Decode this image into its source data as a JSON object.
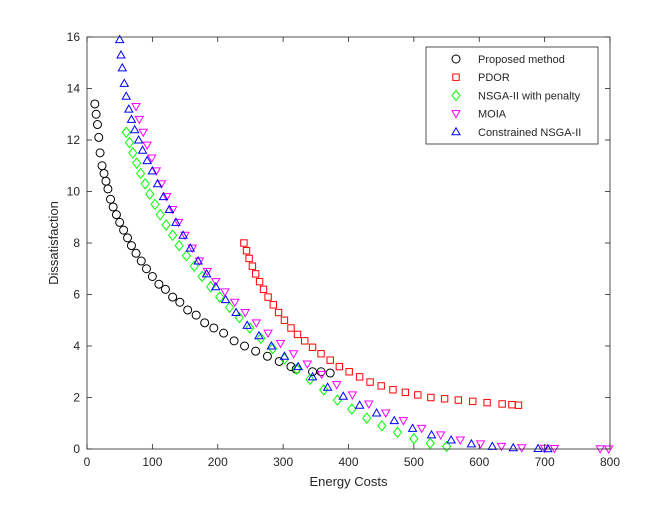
{
  "chart_data": {
    "type": "scatter",
    "title": "",
    "xlabel": "Energy Costs",
    "ylabel": "Dissatisfaction",
    "xlim": [
      0,
      800
    ],
    "ylim": [
      0,
      16
    ],
    "xticks": [
      0,
      100,
      200,
      300,
      400,
      500,
      600,
      700,
      800
    ],
    "yticks": [
      0,
      2,
      4,
      6,
      8,
      10,
      12,
      14,
      16
    ],
    "grid": false,
    "legend_position": "top-right",
    "series": [
      {
        "name": "Proposed method",
        "marker": "circle",
        "color": "#000000",
        "x": [
          12,
          14,
          16,
          18,
          20,
          23,
          26,
          29,
          32,
          36,
          40,
          45,
          50,
          56,
          62,
          68,
          75,
          83,
          91,
          100,
          110,
          120,
          131,
          142,
          154,
          167,
          180,
          194,
          209,
          225,
          241,
          258,
          276,
          294,
          312,
          320,
          345,
          358,
          372
        ],
        "y": [
          13.4,
          13.0,
          12.6,
          12.1,
          11.5,
          11.0,
          10.7,
          10.4,
          10.1,
          9.7,
          9.4,
          9.1,
          8.8,
          8.5,
          8.2,
          7.9,
          7.6,
          7.3,
          7.0,
          6.7,
          6.4,
          6.2,
          5.9,
          5.7,
          5.4,
          5.2,
          4.9,
          4.7,
          4.5,
          4.2,
          4.0,
          3.8,
          3.6,
          3.4,
          3.2,
          3.1,
          3.0,
          3.0,
          2.95
        ]
      },
      {
        "name": "PDOR",
        "marker": "square",
        "color": "#ff0000",
        "x": [
          240,
          244,
          248,
          253,
          258,
          264,
          270,
          277,
          285,
          293,
          302,
          312,
          322,
          333,
          345,
          358,
          372,
          386,
          401,
          417,
          433,
          450,
          468,
          487,
          506,
          526,
          547,
          568,
          590,
          612,
          635,
          650,
          660
        ],
        "y": [
          8.0,
          7.7,
          7.4,
          7.1,
          6.8,
          6.5,
          6.2,
          5.9,
          5.6,
          5.3,
          5.0,
          4.7,
          4.45,
          4.2,
          3.95,
          3.7,
          3.45,
          3.2,
          3.0,
          2.8,
          2.6,
          2.45,
          2.3,
          2.2,
          2.1,
          2.0,
          1.95,
          1.9,
          1.85,
          1.8,
          1.75,
          1.72,
          1.7
        ]
      },
      {
        "name": "NSGA-II with penalty",
        "marker": "diamond",
        "color": "#00ff00",
        "x": [
          60,
          65,
          70,
          76,
          82,
          89,
          96,
          104,
          112,
          121,
          131,
          141,
          152,
          164,
          176,
          189,
          203,
          218,
          233,
          249,
          266,
          284,
          302,
          321,
          341,
          362,
          383,
          405,
          428,
          451,
          475,
          500,
          525,
          550
        ],
        "y": [
          12.3,
          11.9,
          11.5,
          11.1,
          10.7,
          10.3,
          9.9,
          9.5,
          9.1,
          8.7,
          8.3,
          7.9,
          7.5,
          7.1,
          6.7,
          6.3,
          5.9,
          5.5,
          5.1,
          4.7,
          4.3,
          3.9,
          3.5,
          3.1,
          2.7,
          2.3,
          1.9,
          1.55,
          1.2,
          0.9,
          0.65,
          0.4,
          0.22,
          0.1
        ]
      },
      {
        "name": "MOIA",
        "marker": "triangle-down",
        "color": "#ff00ff",
        "x": [
          75,
          80,
          86,
          92,
          99,
          106,
          114,
          122,
          131,
          140,
          150,
          161,
          172,
          184,
          197,
          211,
          226,
          242,
          259,
          277,
          296,
          316,
          337,
          359,
          382,
          406,
          431,
          457,
          484,
          512,
          541,
          571,
          602,
          634,
          665,
          700,
          715,
          785,
          798
        ],
        "y": [
          13.3,
          12.8,
          12.3,
          11.8,
          11.3,
          10.8,
          10.3,
          9.8,
          9.3,
          8.8,
          8.3,
          7.8,
          7.3,
          6.9,
          6.5,
          6.1,
          5.7,
          5.3,
          4.9,
          4.5,
          4.1,
          3.7,
          3.3,
          2.9,
          2.5,
          2.1,
          1.75,
          1.4,
          1.1,
          0.8,
          0.55,
          0.35,
          0.2,
          0.1,
          0.05,
          0.03,
          0.02,
          0.01,
          0.0
        ]
      },
      {
        "name": "Constrained NSGA-II",
        "marker": "triangle-up",
        "color": "#0000ff",
        "x": [
          50,
          52,
          54,
          57,
          60,
          64,
          68,
          73,
          79,
          85,
          92,
          100,
          108,
          117,
          126,
          136,
          147,
          158,
          170,
          183,
          197,
          212,
          228,
          245,
          263,
          282,
          302,
          323,
          345,
          368,
          392,
          417,
          443,
          470,
          498,
          527,
          557,
          588,
          620,
          652,
          690,
          705
        ],
        "y": [
          15.9,
          15.3,
          14.8,
          14.2,
          13.7,
          13.2,
          12.8,
          12.4,
          12.0,
          11.6,
          11.2,
          10.8,
          10.3,
          9.8,
          9.3,
          8.8,
          8.3,
          7.8,
          7.3,
          6.8,
          6.3,
          5.8,
          5.3,
          4.8,
          4.4,
          4.0,
          3.6,
          3.2,
          2.8,
          2.4,
          2.05,
          1.7,
          1.4,
          1.1,
          0.8,
          0.55,
          0.35,
          0.2,
          0.1,
          0.05,
          0.02,
          0.01
        ]
      }
    ]
  }
}
